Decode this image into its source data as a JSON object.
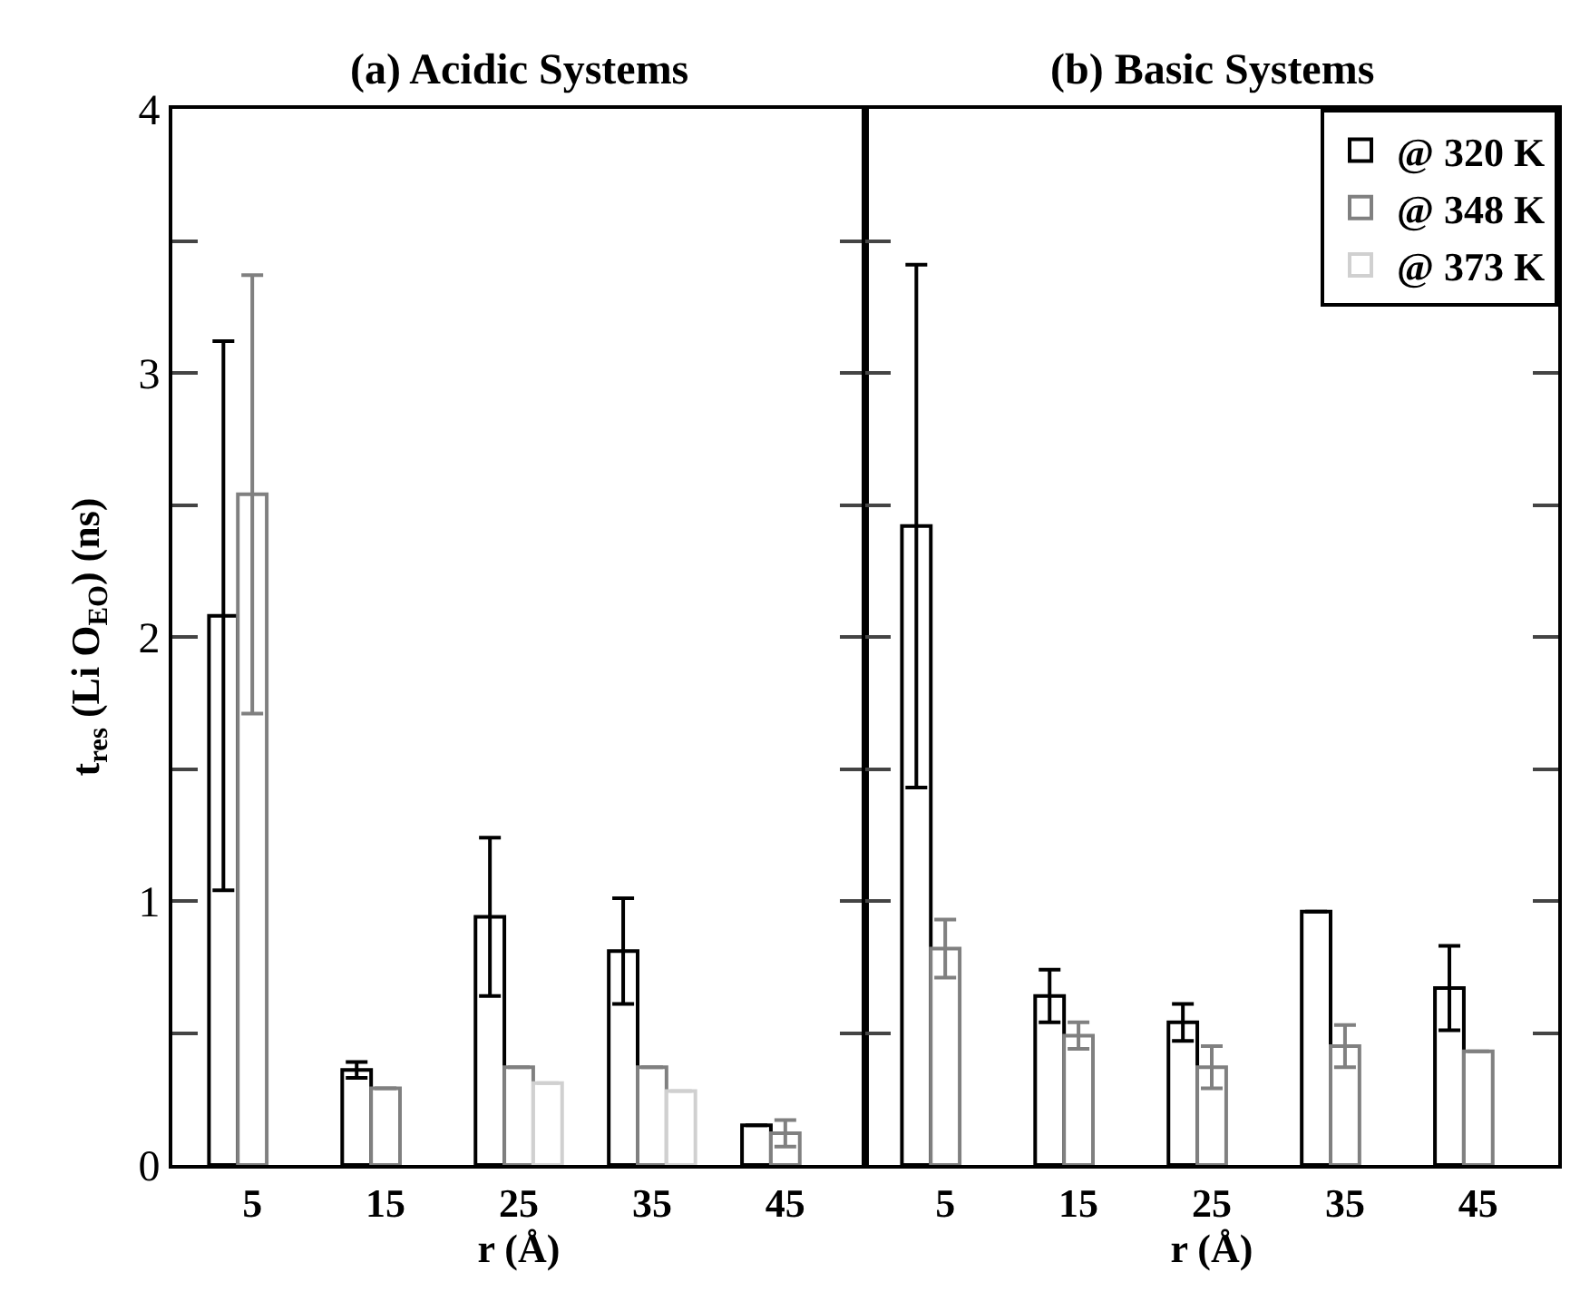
{
  "chart_data": [
    {
      "type": "bar",
      "title": "(a) Acidic Systems",
      "xlabel": "r (Å)",
      "ylabel": "t$_{res}$ (Li O$_{EO}$) (ns)",
      "categories": [
        "5",
        "15",
        "25",
        "35",
        "45"
      ],
      "ylim": [
        0,
        4
      ],
      "yticks": [
        0,
        {
          "value": 0.5,
          "label": null
        },
        1,
        {
          "value": 1.5,
          "label": null
        },
        2,
        {
          "value": 2.5,
          "label": null
        },
        3,
        {
          "value": 3.5,
          "label": null
        },
        4
      ],
      "legend": false,
      "series": [
        {
          "color": "#000000",
          "values": [
            2.08,
            0.36,
            0.94,
            0.81,
            0.15
          ],
          "errors": [
            1.04,
            0.03,
            0.3,
            0.2,
            null
          ]
        },
        {
          "color": "#808080",
          "values": [
            2.54,
            0.29,
            0.37,
            0.37,
            0.12
          ],
          "errors": [
            0.83,
            null,
            null,
            null,
            0.05
          ]
        },
        {
          "color": "#d0d0d0",
          "values": [
            null,
            null,
            0.31,
            0.28,
            null
          ],
          "errors": [
            null,
            null,
            null,
            null,
            null
          ]
        }
      ]
    },
    {
      "type": "bar",
      "title": "(b) Basic Systems",
      "xlabel": "r (Å)",
      "categories": [
        "5",
        "15",
        "25",
        "35",
        "45"
      ],
      "ylim": [
        0,
        4
      ],
      "yticks": [
        0,
        {
          "value": 0.5,
          "label": null
        },
        1,
        {
          "value": 1.5,
          "label": null
        },
        2,
        {
          "value": 2.5,
          "label": null
        },
        3,
        {
          "value": 3.5,
          "label": null
        },
        4
      ],
      "tick_labels": "x",
      "legend": "top right",
      "series": [
        {
          "name": "@ 320 K",
          "color": "#000000",
          "values": [
            2.42,
            0.64,
            0.54,
            0.96,
            0.67
          ],
          "errors": [
            0.99,
            0.1,
            0.07,
            null,
            0.16
          ]
        },
        {
          "name": "@ 348 K",
          "color": "#808080",
          "values": [
            0.82,
            0.49,
            0.37,
            0.45,
            0.43
          ],
          "errors": [
            0.11,
            0.05,
            0.08,
            0.08,
            null
          ]
        },
        {
          "name": "@ 373 K",
          "color": "#d0d0d0",
          "values": [
            null,
            null,
            null,
            null,
            null
          ],
          "errors": [
            null,
            null,
            null,
            null,
            null
          ]
        }
      ]
    }
  ]
}
